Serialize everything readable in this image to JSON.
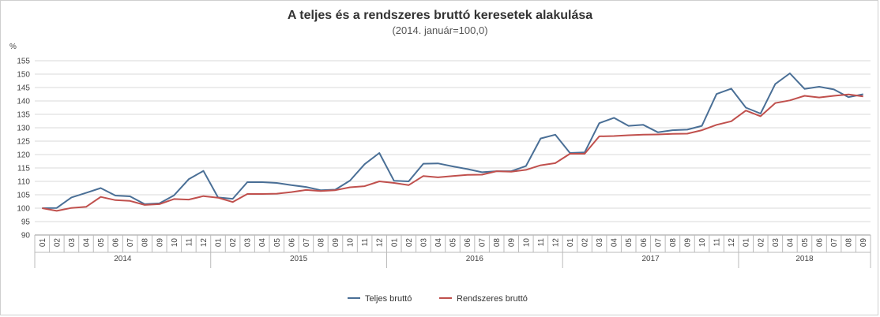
{
  "chart_data": {
    "type": "line",
    "title": "A teljes és a rendszeres bruttó keresetek alakulása",
    "subtitle": "(2014. január=100,0)",
    "ylabel": "%",
    "ylim": [
      90,
      155
    ],
    "yticks": [
      90,
      95,
      100,
      105,
      110,
      115,
      120,
      125,
      130,
      135,
      140,
      145,
      150,
      155
    ],
    "grid": true,
    "legend_position": "bottom",
    "x_months": [
      "01",
      "02",
      "03",
      "04",
      "05",
      "06",
      "07",
      "08",
      "09",
      "10",
      "11",
      "12",
      "01",
      "02",
      "03",
      "04",
      "05",
      "06",
      "07",
      "08",
      "09",
      "10",
      "11",
      "12",
      "01",
      "02",
      "03",
      "04",
      "05",
      "06",
      "07",
      "08",
      "09",
      "10",
      "11",
      "12",
      "01",
      "02",
      "03",
      "04",
      "05",
      "06",
      "07",
      "08",
      "09",
      "10",
      "11",
      "12",
      "01",
      "02",
      "03",
      "04",
      "05",
      "06",
      "07",
      "08",
      "09"
    ],
    "years": [
      {
        "label": "2014",
        "months": 12
      },
      {
        "label": "2015",
        "months": 12
      },
      {
        "label": "2016",
        "months": 12
      },
      {
        "label": "2017",
        "months": 12
      },
      {
        "label": "2018",
        "months": 9
      }
    ],
    "series": [
      {
        "name": "Teljes bruttó",
        "color": "#4a6f96",
        "values": [
          100.0,
          100.1,
          104.0,
          105.7,
          107.5,
          104.7,
          104.4,
          101.5,
          101.8,
          104.8,
          110.8,
          113.9,
          104.0,
          103.5,
          109.7,
          109.7,
          109.4,
          108.6,
          107.9,
          106.7,
          106.9,
          110.3,
          116.4,
          120.6,
          110.2,
          110.0,
          116.6,
          116.7,
          115.6,
          114.6,
          113.4,
          113.8,
          113.8,
          115.7,
          126.0,
          127.4,
          120.6,
          120.8,
          131.7,
          133.7,
          130.7,
          131.1,
          128.3,
          129.1,
          129.3,
          130.7,
          142.6,
          144.6,
          137.5,
          135.3,
          146.3,
          150.3,
          144.5,
          145.3,
          144.3,
          141.4,
          142.5
        ]
      },
      {
        "name": "Rendszeres bruttó",
        "color": "#c0504d",
        "values": [
          100.0,
          99.0,
          100.1,
          100.5,
          104.2,
          103.0,
          102.7,
          101.2,
          101.5,
          103.4,
          103.2,
          104.5,
          103.9,
          102.3,
          105.3,
          105.3,
          105.4,
          106.0,
          106.8,
          106.4,
          106.7,
          107.8,
          108.2,
          110.0,
          109.4,
          108.6,
          112.0,
          111.5,
          112.0,
          112.4,
          112.5,
          113.8,
          113.6,
          114.3,
          116.0,
          116.8,
          120.3,
          120.3,
          126.8,
          126.9,
          127.2,
          127.4,
          127.5,
          127.7,
          127.8,
          129.1,
          131.1,
          132.4,
          136.4,
          134.3,
          139.2,
          140.2,
          141.9,
          141.3,
          141.9,
          142.4,
          141.7
        ]
      }
    ]
  }
}
